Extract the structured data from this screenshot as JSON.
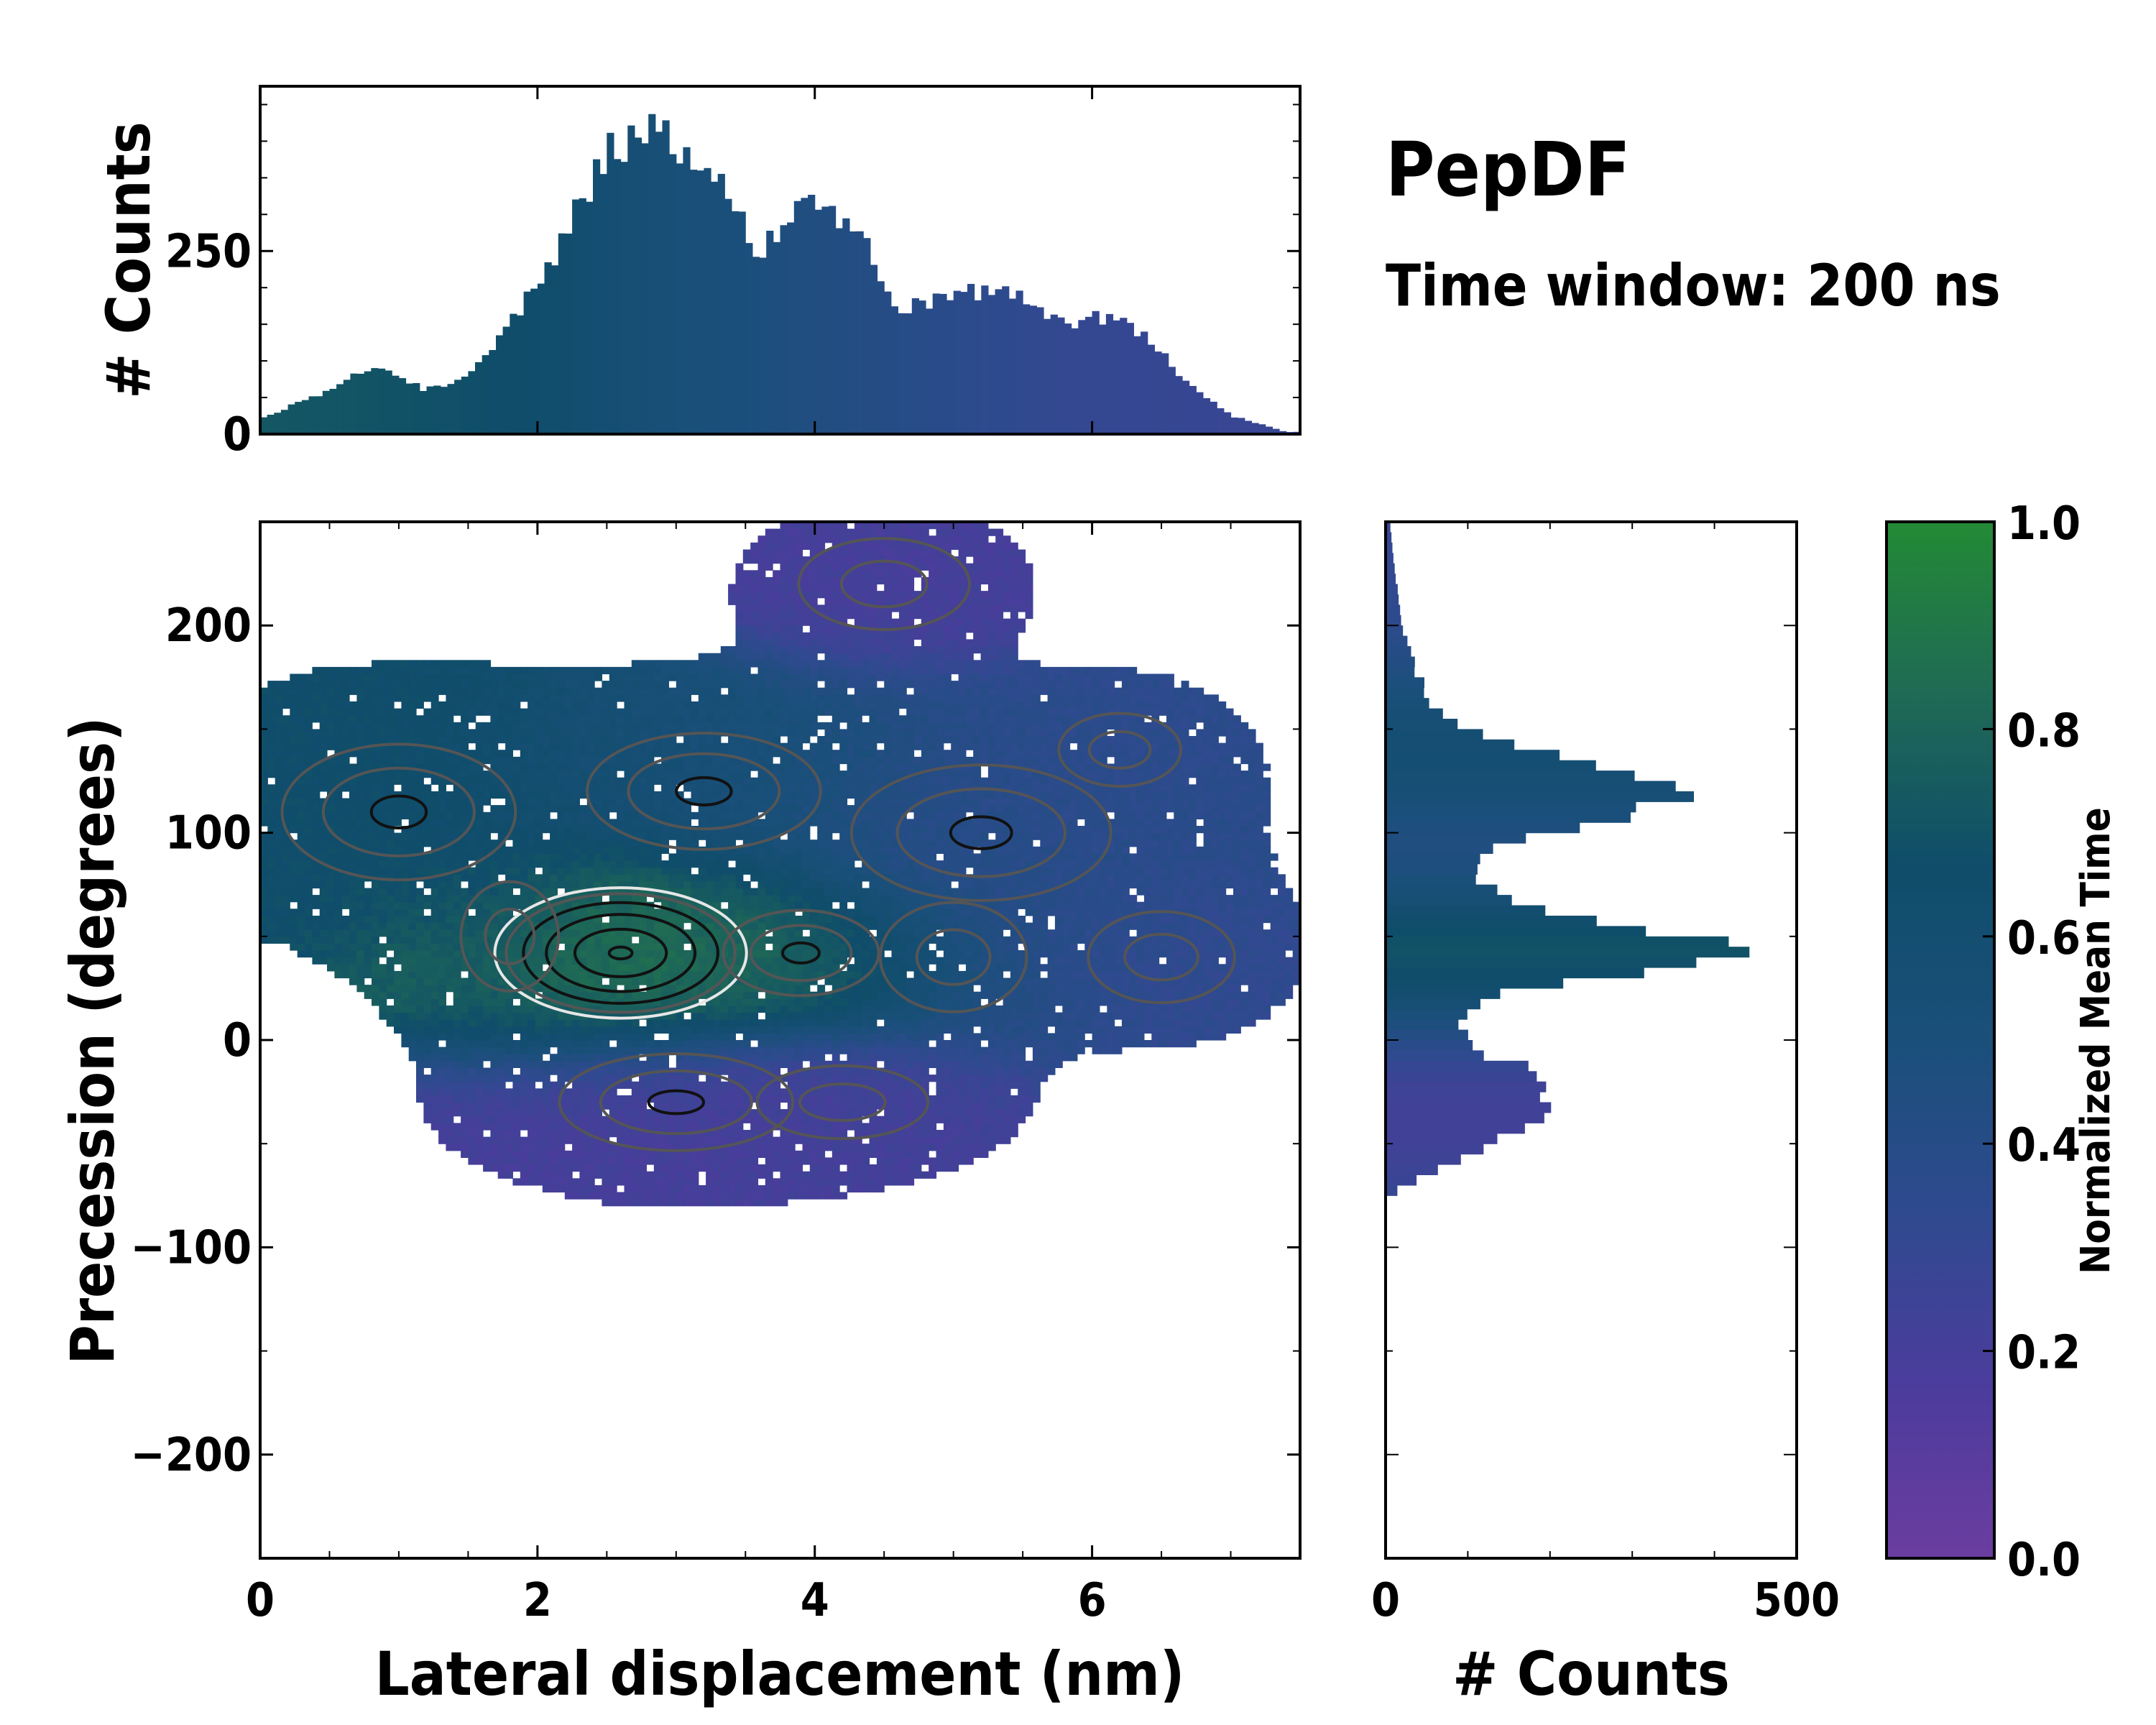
{
  "chart_data": {
    "type": "heatmap",
    "title": "PepDF",
    "subtitle": "Time window: 200 ns",
    "main": {
      "xlabel": "Lateral displacement (nm)",
      "ylabel": "Precession (degrees)",
      "xlim": [
        0,
        7.5
      ],
      "ylim": [
        -250,
        250
      ],
      "xticks": [
        0,
        2,
        4,
        6
      ],
      "yticks": [
        200,
        100,
        0,
        -100,
        -200
      ],
      "xtick_labels": [
        "0",
        "2",
        "4",
        "6"
      ],
      "ytick_labels": [
        "200",
        "100",
        "0",
        "−100",
        "−200"
      ],
      "density_clusters": [
        {
          "x": 2.6,
          "y": 42,
          "sx": 0.75,
          "sy": 26,
          "weight": 1.0,
          "mean_time": 0.85
        },
        {
          "x": 3.9,
          "y": 42,
          "sx": 0.6,
          "sy": 22,
          "weight": 0.55,
          "mean_time": 0.78
        },
        {
          "x": 1.0,
          "y": 110,
          "sx": 0.9,
          "sy": 35,
          "weight": 0.5,
          "mean_time": 0.66
        },
        {
          "x": 3.2,
          "y": 120,
          "sx": 0.9,
          "sy": 30,
          "weight": 0.45,
          "mean_time": 0.55
        },
        {
          "x": 5.2,
          "y": 100,
          "sx": 1.0,
          "sy": 35,
          "weight": 0.45,
          "mean_time": 0.38
        },
        {
          "x": 6.2,
          "y": 140,
          "sx": 0.5,
          "sy": 20,
          "weight": 0.25,
          "mean_time": 0.35
        },
        {
          "x": 3.0,
          "y": -30,
          "sx": 0.9,
          "sy": 25,
          "weight": 0.45,
          "mean_time": 0.2
        },
        {
          "x": 4.2,
          "y": -30,
          "sx": 0.7,
          "sy": 20,
          "weight": 0.3,
          "mean_time": 0.22
        },
        {
          "x": 4.5,
          "y": 220,
          "sx": 0.7,
          "sy": 25,
          "weight": 0.2,
          "mean_time": 0.2
        },
        {
          "x": 6.5,
          "y": 40,
          "sx": 0.6,
          "sy": 25,
          "weight": 0.25,
          "mean_time": 0.33
        },
        {
          "x": 1.8,
          "y": 50,
          "sx": 0.4,
          "sy": 30,
          "weight": 0.2,
          "mean_time": 0.55
        },
        {
          "x": 5.0,
          "y": 40,
          "sx": 0.6,
          "sy": 30,
          "weight": 0.25,
          "mean_time": 0.45
        }
      ]
    },
    "top_histogram": {
      "ylabel": "# Counts",
      "ylim": [
        0,
        475
      ],
      "yticks": [
        0,
        250
      ],
      "ytick_labels": [
        "0",
        "250"
      ],
      "bin_width": 0.05,
      "profile": [
        {
          "x": 0.0,
          "count": 20,
          "mean_time": 0.72
        },
        {
          "x": 0.5,
          "count": 60,
          "mean_time": 0.71
        },
        {
          "x": 0.8,
          "count": 95,
          "mean_time": 0.7
        },
        {
          "x": 1.2,
          "count": 60,
          "mean_time": 0.69
        },
        {
          "x": 1.5,
          "count": 75,
          "mean_time": 0.68
        },
        {
          "x": 1.8,
          "count": 150,
          "mean_time": 0.66
        },
        {
          "x": 2.2,
          "count": 270,
          "mean_time": 0.63
        },
        {
          "x": 2.5,
          "count": 390,
          "mean_time": 0.58
        },
        {
          "x": 2.9,
          "count": 420,
          "mean_time": 0.53
        },
        {
          "x": 3.3,
          "count": 340,
          "mean_time": 0.5
        },
        {
          "x": 3.6,
          "count": 250,
          "mean_time": 0.48
        },
        {
          "x": 4.0,
          "count": 330,
          "mean_time": 0.45
        },
        {
          "x": 4.3,
          "count": 280,
          "mean_time": 0.43
        },
        {
          "x": 4.6,
          "count": 170,
          "mean_time": 0.4
        },
        {
          "x": 5.0,
          "count": 190,
          "mean_time": 0.37
        },
        {
          "x": 5.4,
          "count": 200,
          "mean_time": 0.34
        },
        {
          "x": 5.8,
          "count": 150,
          "mean_time": 0.31
        },
        {
          "x": 6.2,
          "count": 165,
          "mean_time": 0.3
        },
        {
          "x": 6.7,
          "count": 70,
          "mean_time": 0.29
        },
        {
          "x": 7.0,
          "count": 25,
          "mean_time": 0.28
        },
        {
          "x": 7.4,
          "count": 3,
          "mean_time": 0.28
        }
      ]
    },
    "right_histogram": {
      "xlabel": "# Counts",
      "xlim": [
        0,
        500
      ],
      "xticks": [
        0,
        500
      ],
      "xtick_labels": [
        "0",
        "500"
      ],
      "bin_width": 5,
      "profile": [
        {
          "y": -75,
          "count": 0,
          "mean_time": 0.3
        },
        {
          "y": -60,
          "count": 80,
          "mean_time": 0.25
        },
        {
          "y": -40,
          "count": 180,
          "mean_time": 0.22
        },
        {
          "y": -20,
          "count": 215,
          "mean_time": 0.25
        },
        {
          "y": -5,
          "count": 110,
          "mean_time": 0.35
        },
        {
          "y": 10,
          "count": 80,
          "mean_time": 0.5
        },
        {
          "y": 25,
          "count": 160,
          "mean_time": 0.62
        },
        {
          "y": 35,
          "count": 360,
          "mean_time": 0.68
        },
        {
          "y": 45,
          "count": 455,
          "mean_time": 0.7
        },
        {
          "y": 55,
          "count": 300,
          "mean_time": 0.66
        },
        {
          "y": 65,
          "count": 170,
          "mean_time": 0.58
        },
        {
          "y": 80,
          "count": 100,
          "mean_time": 0.48
        },
        {
          "y": 95,
          "count": 140,
          "mean_time": 0.45
        },
        {
          "y": 110,
          "count": 310,
          "mean_time": 0.5
        },
        {
          "y": 120,
          "count": 360,
          "mean_time": 0.55
        },
        {
          "y": 130,
          "count": 280,
          "mean_time": 0.57
        },
        {
          "y": 145,
          "count": 120,
          "mean_time": 0.58
        },
        {
          "y": 160,
          "count": 60,
          "mean_time": 0.55
        },
        {
          "y": 180,
          "count": 35,
          "mean_time": 0.45
        },
        {
          "y": 200,
          "count": 20,
          "mean_time": 0.35
        },
        {
          "y": 230,
          "count": 10,
          "mean_time": 0.3
        },
        {
          "y": 250,
          "count": 5,
          "mean_time": 0.3
        }
      ]
    },
    "colorbar": {
      "label": "Normalized Mean Time",
      "range": [
        0,
        1
      ],
      "ticks": [
        "0.0",
        "0.2",
        "0.4",
        "0.6",
        "0.8",
        "1.0"
      ],
      "colors": [
        "#6b3da0",
        "#4b3c9c",
        "#2f4a8f",
        "#1a4f7a",
        "#0f4d6a",
        "#1f6a55",
        "#238a35"
      ]
    }
  }
}
